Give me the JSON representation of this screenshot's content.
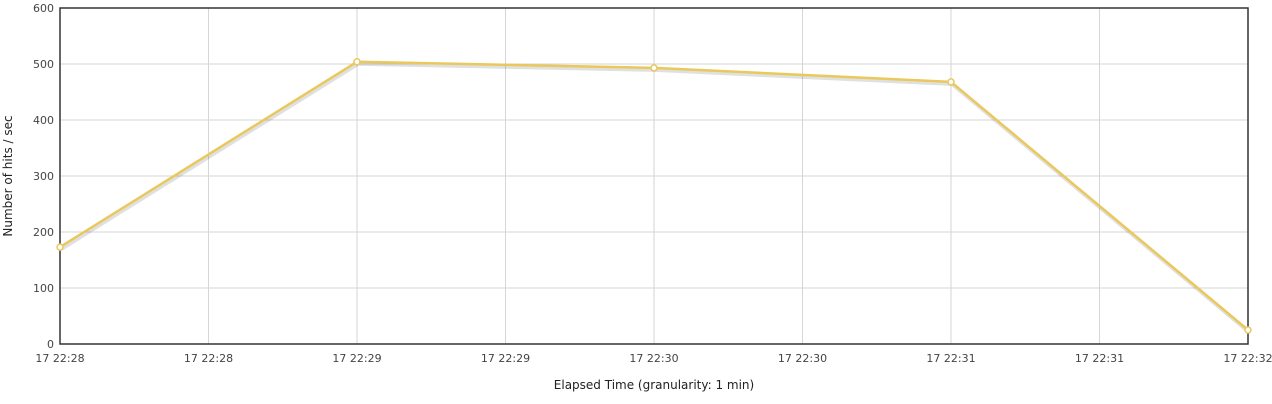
{
  "chart_data": {
    "type": "line",
    "xlabel": "Elapsed Time (granularity: 1 min)",
    "ylabel": "Number of hits / sec",
    "ylim": [
      0,
      600
    ],
    "y_ticks": [
      0,
      100,
      200,
      300,
      400,
      500,
      600
    ],
    "x_tick_labels": [
      "17 22:28",
      "17 22:28",
      "17 22:29",
      "17 22:29",
      "17 22:30",
      "17 22:30",
      "17 22:31",
      "17 22:31",
      "17 22:32"
    ],
    "grid": true,
    "legend": "none",
    "series": [
      {
        "x": [
          "17 22:28",
          "17 22:29",
          "17 22:30",
          "17 22:31",
          "17 22:32"
        ],
        "values": [
          173,
          504,
          493,
          468,
          25
        ],
        "color": "#EAC85B"
      }
    ]
  }
}
